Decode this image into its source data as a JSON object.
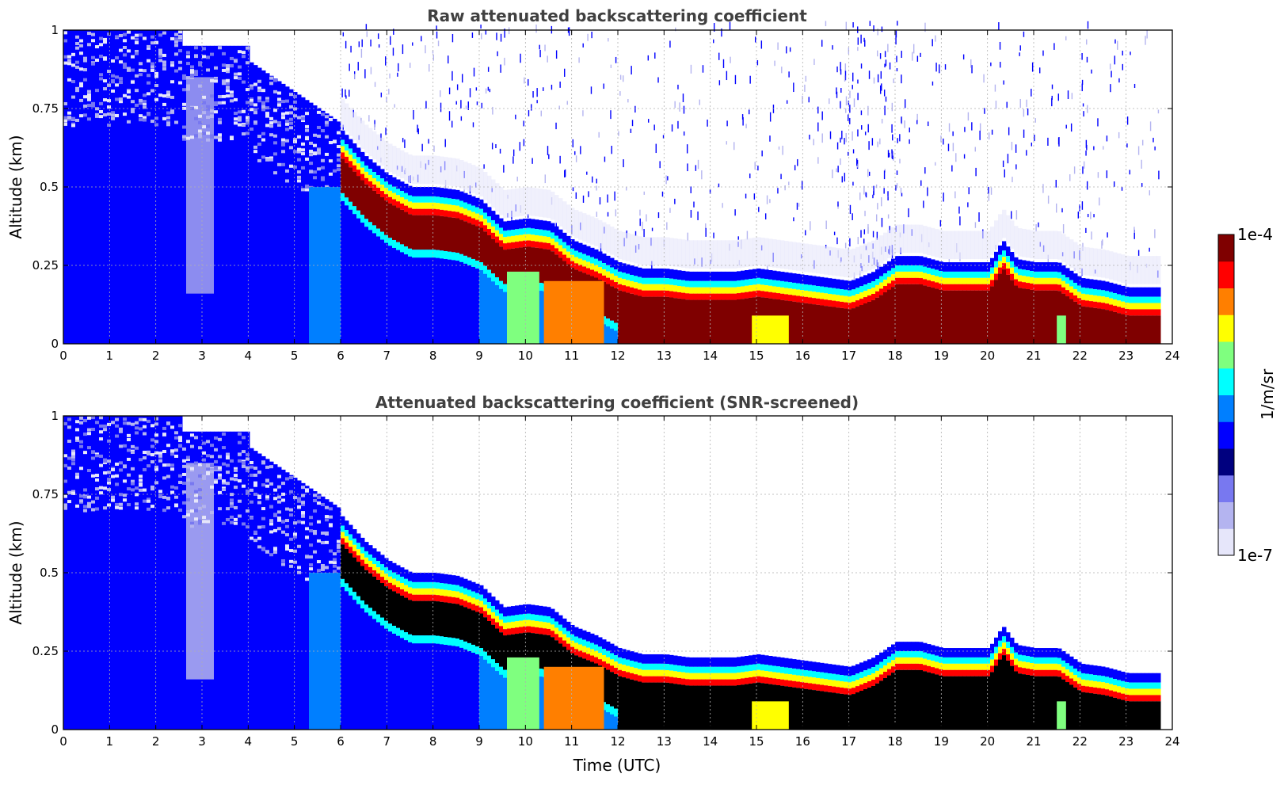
{
  "colors": {
    "jet": [
      "#00007f",
      "#0000ff",
      "#007fff",
      "#00ffff",
      "#7fff7f",
      "#ffff00",
      "#ff7f00",
      "#ff0000",
      "#7f0000"
    ],
    "low": [
      "#e6e6fa",
      "#b4b4f0",
      "#7878f0"
    ],
    "screened": "#000000",
    "grid": "#b0b0b0"
  },
  "chart_data": [
    {
      "type": "heatmap",
      "title": "Raw attenuated backscattering coefficient",
      "xlabel": "",
      "ylabel": "Altitude (km)",
      "xlim": [
        0,
        24
      ],
      "ylim": [
        0,
        1
      ],
      "x_ticks": [
        "0",
        "1",
        "2",
        "3",
        "4",
        "5",
        "6",
        "7",
        "8",
        "9",
        "10",
        "11",
        "12",
        "13",
        "14",
        "15",
        "16",
        "17",
        "18",
        "19",
        "20",
        "21",
        "22",
        "23",
        "24"
      ],
      "y_ticks": [
        "0",
        "0.25",
        "0.5",
        "0.75",
        "1"
      ],
      "grid": true,
      "layer_top_km": [
        [
          6.0,
          0.66
        ],
        [
          6.5,
          0.58
        ],
        [
          7.0,
          0.52
        ],
        [
          7.5,
          0.48
        ],
        [
          8.0,
          0.48
        ],
        [
          8.5,
          0.47
        ],
        [
          9.0,
          0.44
        ],
        [
          9.5,
          0.37
        ],
        [
          10.0,
          0.38
        ],
        [
          10.5,
          0.37
        ],
        [
          11.0,
          0.31
        ],
        [
          11.5,
          0.28
        ],
        [
          12.0,
          0.24
        ],
        [
          12.5,
          0.22
        ],
        [
          13.0,
          0.22
        ],
        [
          13.5,
          0.21
        ],
        [
          14.0,
          0.21
        ],
        [
          14.5,
          0.21
        ],
        [
          15.0,
          0.22
        ],
        [
          15.5,
          0.21
        ],
        [
          16.0,
          0.2
        ],
        [
          16.5,
          0.19
        ],
        [
          17.0,
          0.18
        ],
        [
          17.5,
          0.21
        ],
        [
          18.0,
          0.26
        ],
        [
          18.5,
          0.26
        ],
        [
          19.0,
          0.24
        ],
        [
          19.5,
          0.24
        ],
        [
          20.0,
          0.24
        ],
        [
          20.3,
          0.31
        ],
        [
          20.6,
          0.25
        ],
        [
          21.0,
          0.24
        ],
        [
          21.5,
          0.24
        ],
        [
          22.0,
          0.19
        ],
        [
          22.5,
          0.18
        ],
        [
          23.0,
          0.16
        ],
        [
          23.8,
          0.16
        ]
      ],
      "highlights": [
        {
          "x": [
            9.6,
            10.3
          ],
          "ymax_km": 0.23,
          "level": "yellow-green"
        },
        {
          "x": [
            10.4,
            11.7
          ],
          "ymax_km": 0.2,
          "level": "orange"
        },
        {
          "x": [
            14.9,
            15.7
          ],
          "ymax_km": 0.09,
          "level": "yellow"
        },
        {
          "x": [
            21.5,
            21.7
          ],
          "ymax_km": 0.09,
          "level": "green"
        }
      ]
    },
    {
      "type": "heatmap",
      "title": "Attenuated backscattering coefficient (SNR-screened)",
      "xlabel": "Time (UTC)",
      "ylabel": "Altitude (km)",
      "xlim": [
        0,
        24
      ],
      "ylim": [
        0,
        1
      ],
      "x_ticks": [
        "0",
        "1",
        "2",
        "3",
        "4",
        "5",
        "6",
        "7",
        "8",
        "9",
        "10",
        "11",
        "12",
        "13",
        "14",
        "15",
        "16",
        "17",
        "18",
        "19",
        "20",
        "21",
        "22",
        "23",
        "24"
      ],
      "y_ticks": [
        "0",
        "0.25",
        "0.5",
        "0.75",
        "1"
      ],
      "grid": true,
      "screened_value_color": "black"
    }
  ],
  "colorbar": {
    "label": "1/m/sr",
    "max_label": "1e-4",
    "min_label": "1e-7",
    "scale": "log"
  }
}
